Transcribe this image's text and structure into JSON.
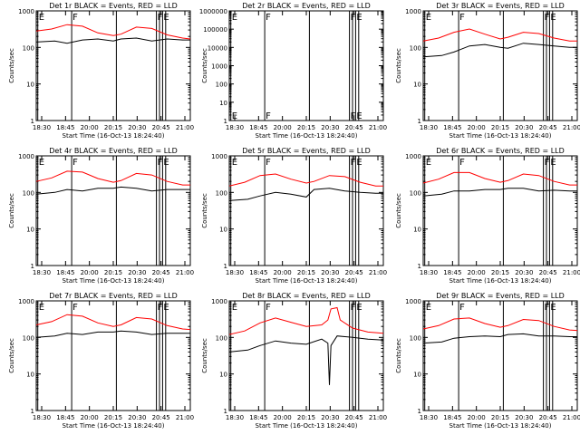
{
  "chart_data": [
    {
      "type": "line",
      "title": "Det 1r BLACK = Events, RED = LLD",
      "xlabel": "Start Time (16-Oct-13 18:24:40)",
      "ylabel": "Counts/sec",
      "yscale": "log",
      "ylim": [
        1,
        1000
      ],
      "x_ticks": [
        "18:30",
        "18:45",
        "20:00",
        "20:15",
        "20:30",
        "20:45",
        "21:00"
      ],
      "y_ticks": [
        "1",
        "10",
        "100",
        "1000"
      ],
      "markers": [
        {
          "label": "E",
          "x": 0.01
        },
        {
          "label": "F",
          "x": 0.23
        },
        {
          "label": "F",
          "x": 0.78
        },
        {
          "label": "E",
          "x": 0.82
        }
      ],
      "vlines": [
        0.01,
        0.23,
        0.52,
        0.78,
        0.8,
        0.82,
        0.84
      ],
      "series": [
        {
          "color": "#ff0000",
          "x": [
            0,
            0.1,
            0.2,
            0.3,
            0.4,
            0.5,
            0.55,
            0.65,
            0.75,
            0.85,
            0.95,
            1.0
          ],
          "values": [
            280,
            320,
            420,
            380,
            250,
            210,
            230,
            360,
            330,
            220,
            180,
            170
          ]
        },
        {
          "color": "#000000",
          "x": [
            0,
            0.12,
            0.2,
            0.3,
            0.4,
            0.5,
            0.55,
            0.65,
            0.75,
            0.85,
            0.95,
            1.0
          ],
          "values": [
            140,
            150,
            130,
            160,
            170,
            150,
            170,
            180,
            150,
            170,
            160,
            160
          ]
        }
      ]
    },
    {
      "type": "line",
      "title": "Det 2r BLACK = Events, RED = LLD",
      "xlabel": "Start Time (16-Oct-13 18:24:40)",
      "ylabel": "Counts/sec",
      "yscale": "log",
      "ylim": [
        1,
        1000000
      ],
      "x_ticks": [
        "18:30",
        "18:45",
        "20:00",
        "20:15",
        "20:30",
        "20:45",
        "21:00"
      ],
      "y_ticks": [
        "1",
        "10",
        "100",
        "1000",
        "10000",
        "100000",
        "1000000"
      ],
      "markers": [
        {
          "label": "E",
          "x": 0.01
        },
        {
          "label": "F",
          "x": 0.23
        },
        {
          "label": "F",
          "x": 0.78
        },
        {
          "label": "E",
          "x": 0.82
        }
      ],
      "vlines": [
        0.01,
        0.23,
        0.52,
        0.78,
        0.8,
        0.82,
        0.84
      ],
      "series": []
    },
    {
      "type": "line",
      "title": "Det 3r BLACK = Events, RED = LLD",
      "xlabel": "Start Time (16-Oct-13 18:24:40)",
      "ylabel": "Counts/sec",
      "yscale": "log",
      "ylim": [
        1,
        1000
      ],
      "x_ticks": [
        "18:30",
        "18:45",
        "20:00",
        "20:15",
        "20:30",
        "20:45",
        "21:00"
      ],
      "y_ticks": [
        "1",
        "10",
        "100",
        "1000"
      ],
      "markers": [
        {
          "label": "E",
          "x": 0.01
        },
        {
          "label": "F",
          "x": 0.23
        },
        {
          "label": "F",
          "x": 0.78
        },
        {
          "label": "E",
          "x": 0.82
        }
      ],
      "vlines": [
        0.01,
        0.23,
        0.52,
        0.78,
        0.8,
        0.82,
        0.84
      ],
      "series": [
        {
          "color": "#ff0000",
          "x": [
            0,
            0.1,
            0.2,
            0.3,
            0.4,
            0.5,
            0.55,
            0.65,
            0.75,
            0.85,
            0.95,
            1.0
          ],
          "values": [
            150,
            180,
            260,
            320,
            230,
            170,
            190,
            260,
            240,
            180,
            150,
            150
          ]
        },
        {
          "color": "#000000",
          "x": [
            0,
            0.12,
            0.2,
            0.3,
            0.4,
            0.5,
            0.55,
            0.65,
            0.75,
            0.85,
            0.95,
            1.0
          ],
          "values": [
            55,
            60,
            75,
            110,
            120,
            100,
            95,
            130,
            120,
            110,
            100,
            100
          ]
        }
      ]
    },
    {
      "type": "line",
      "title": "Det 4r BLACK = Events, RED = LLD",
      "xlabel": "Start Time (16-Oct-13 18:24:40)",
      "ylabel": "Counts/sec",
      "yscale": "log",
      "ylim": [
        1,
        1000
      ],
      "x_ticks": [
        "18:30",
        "18:45",
        "20:00",
        "20:15",
        "20:30",
        "20:45",
        "21:00"
      ],
      "y_ticks": [
        "1",
        "10",
        "100",
        "1000"
      ],
      "markers": [
        {
          "label": "E",
          "x": 0.01
        },
        {
          "label": "F",
          "x": 0.23
        },
        {
          "label": "F",
          "x": 0.78
        },
        {
          "label": "E",
          "x": 0.82
        }
      ],
      "vlines": [
        0.01,
        0.23,
        0.52,
        0.78,
        0.8,
        0.82,
        0.84
      ],
      "series": [
        {
          "color": "#ff0000",
          "x": [
            0,
            0.1,
            0.2,
            0.3,
            0.4,
            0.5,
            0.55,
            0.65,
            0.75,
            0.85,
            0.95,
            1.0
          ],
          "values": [
            200,
            250,
            380,
            360,
            240,
            190,
            210,
            330,
            300,
            200,
            160,
            160
          ]
        },
        {
          "color": "#000000",
          "x": [
            0,
            0.12,
            0.2,
            0.3,
            0.4,
            0.5,
            0.55,
            0.65,
            0.75,
            0.85,
            0.95,
            1.0
          ],
          "values": [
            90,
            100,
            120,
            110,
            130,
            130,
            140,
            130,
            110,
            120,
            120,
            120
          ]
        }
      ]
    },
    {
      "type": "line",
      "title": "Det 5r BLACK = Events, RED = LLD",
      "xlabel": "Start Time (16-Oct-13 18:24:40)",
      "ylabel": "Counts/sec",
      "yscale": "log",
      "ylim": [
        1,
        1000
      ],
      "x_ticks": [
        "18:30",
        "18:45",
        "20:00",
        "20:15",
        "20:30",
        "20:45",
        "21:00"
      ],
      "y_ticks": [
        "1",
        "10",
        "100",
        "1000"
      ],
      "markers": [
        {
          "label": "E",
          "x": 0.01
        },
        {
          "label": "F",
          "x": 0.23
        },
        {
          "label": "F",
          "x": 0.78
        },
        {
          "label": "E",
          "x": 0.82
        }
      ],
      "vlines": [
        0.01,
        0.23,
        0.52,
        0.78,
        0.8,
        0.82,
        0.84
      ],
      "series": [
        {
          "color": "#ff0000",
          "x": [
            0,
            0.1,
            0.2,
            0.3,
            0.4,
            0.5,
            0.55,
            0.65,
            0.75,
            0.85,
            0.95,
            1.0
          ],
          "values": [
            150,
            190,
            290,
            320,
            230,
            180,
            200,
            290,
            270,
            190,
            150,
            150
          ]
        },
        {
          "color": "#000000",
          "x": [
            0,
            0.12,
            0.2,
            0.3,
            0.4,
            0.5,
            0.55,
            0.65,
            0.75,
            0.85,
            0.95,
            1.0
          ],
          "values": [
            60,
            65,
            80,
            100,
            90,
            75,
            120,
            130,
            110,
            100,
            95,
            95
          ]
        }
      ]
    },
    {
      "type": "line",
      "title": "Det 6r BLACK = Events, RED = LLD",
      "xlabel": "Start Time (16-Oct-13 18:24:40)",
      "ylabel": "Counts/sec",
      "yscale": "log",
      "ylim": [
        1,
        1000
      ],
      "x_ticks": [
        "18:30",
        "18:45",
        "20:00",
        "20:15",
        "20:30",
        "20:45",
        "21:00"
      ],
      "y_ticks": [
        "1",
        "10",
        "100",
        "1000"
      ],
      "markers": [
        {
          "label": "E",
          "x": 0.01
        },
        {
          "label": "F",
          "x": 0.23
        },
        {
          "label": "F",
          "x": 0.78
        },
        {
          "label": "E",
          "x": 0.82
        }
      ],
      "vlines": [
        0.01,
        0.23,
        0.52,
        0.78,
        0.8,
        0.82,
        0.84
      ],
      "series": [
        {
          "color": "#ff0000",
          "x": [
            0,
            0.1,
            0.2,
            0.3,
            0.4,
            0.5,
            0.55,
            0.65,
            0.75,
            0.85,
            0.95,
            1.0
          ],
          "values": [
            180,
            230,
            350,
            350,
            240,
            190,
            210,
            320,
            290,
            200,
            160,
            160
          ]
        },
        {
          "color": "#000000",
          "x": [
            0,
            0.12,
            0.2,
            0.3,
            0.4,
            0.5,
            0.55,
            0.65,
            0.75,
            0.85,
            0.95,
            1.0
          ],
          "values": [
            80,
            90,
            110,
            110,
            120,
            120,
            130,
            130,
            110,
            115,
            110,
            110
          ]
        }
      ]
    },
    {
      "type": "line",
      "title": "Det 7r BLACK = Events, RED = LLD",
      "xlabel": "Start Time (16-Oct-13 18:24:40)",
      "ylabel": "Counts/sec",
      "yscale": "log",
      "ylim": [
        1,
        1000
      ],
      "x_ticks": [
        "18:30",
        "18:45",
        "20:00",
        "20:15",
        "20:30",
        "20:45",
        "21:00"
      ],
      "y_ticks": [
        "1",
        "10",
        "100",
        "1000"
      ],
      "markers": [
        {
          "label": "E",
          "x": 0.01
        },
        {
          "label": "F",
          "x": 0.23
        },
        {
          "label": "F",
          "x": 0.78
        },
        {
          "label": "E",
          "x": 0.82
        }
      ],
      "vlines": [
        0.01,
        0.23,
        0.52,
        0.78,
        0.8,
        0.82,
        0.84
      ],
      "series": [
        {
          "color": "#ff0000",
          "x": [
            0,
            0.1,
            0.2,
            0.3,
            0.4,
            0.5,
            0.55,
            0.65,
            0.75,
            0.85,
            0.95,
            1.0
          ],
          "values": [
            220,
            270,
            420,
            380,
            250,
            200,
            220,
            350,
            320,
            210,
            170,
            165
          ]
        },
        {
          "color": "#000000",
          "x": [
            0,
            0.12,
            0.2,
            0.3,
            0.4,
            0.5,
            0.55,
            0.65,
            0.75,
            0.85,
            0.95,
            1.0
          ],
          "values": [
            100,
            110,
            130,
            120,
            140,
            140,
            150,
            140,
            120,
            130,
            130,
            130
          ]
        }
      ]
    },
    {
      "type": "line",
      "title": "Det 8r BLACK = Events, RED = LLD",
      "xlabel": "Start Time (16-Oct-13 18:24:40)",
      "ylabel": "Counts/sec",
      "yscale": "log",
      "ylim": [
        1,
        1000
      ],
      "x_ticks": [
        "18:30",
        "18:45",
        "20:00",
        "20:15",
        "20:30",
        "20:45",
        "21:00"
      ],
      "y_ticks": [
        "1",
        "10",
        "100",
        "1000"
      ],
      "markers": [
        {
          "label": "E",
          "x": 0.01
        },
        {
          "label": "F",
          "x": 0.23
        },
        {
          "label": "F",
          "x": 0.78
        },
        {
          "label": "E",
          "x": 0.82
        }
      ],
      "vlines": [
        0.01,
        0.23,
        0.52,
        0.78,
        0.8,
        0.82,
        0.84
      ],
      "series": [
        {
          "color": "#ff0000",
          "x": [
            0,
            0.1,
            0.2,
            0.3,
            0.4,
            0.5,
            0.6,
            0.64,
            0.66,
            0.7,
            0.72,
            0.8,
            0.9,
            1.0
          ],
          "values": [
            120,
            150,
            250,
            340,
            260,
            200,
            220,
            300,
            600,
            650,
            300,
            180,
            140,
            130
          ]
        },
        {
          "color": "#000000",
          "x": [
            0,
            0.12,
            0.2,
            0.3,
            0.4,
            0.5,
            0.6,
            0.64,
            0.65,
            0.66,
            0.7,
            0.8,
            0.9,
            1.0
          ],
          "values": [
            40,
            45,
            60,
            80,
            70,
            65,
            90,
            70,
            5,
            60,
            110,
            100,
            90,
            85
          ]
        }
      ]
    },
    {
      "type": "line",
      "title": "Det 9r BLACK = Events, RED = LLD",
      "xlabel": "Start Time (16-Oct-13 18:24:40)",
      "ylabel": "Counts/sec",
      "yscale": "log",
      "ylim": [
        1,
        1000
      ],
      "x_ticks": [
        "18:30",
        "18:45",
        "20:00",
        "20:15",
        "20:30",
        "20:45",
        "21:00"
      ],
      "y_ticks": [
        "1",
        "10",
        "100",
        "1000"
      ],
      "markers": [
        {
          "label": "E",
          "x": 0.01
        },
        {
          "label": "F",
          "x": 0.23
        },
        {
          "label": "F",
          "x": 0.78
        },
        {
          "label": "E",
          "x": 0.82
        }
      ],
      "vlines": [
        0.01,
        0.23,
        0.52,
        0.78,
        0.8,
        0.82,
        0.84
      ],
      "series": [
        {
          "color": "#ff0000",
          "x": [
            0,
            0.1,
            0.2,
            0.3,
            0.4,
            0.5,
            0.55,
            0.65,
            0.75,
            0.85,
            0.95,
            1.0
          ],
          "values": [
            170,
            210,
            320,
            340,
            240,
            190,
            210,
            310,
            290,
            200,
            160,
            155
          ]
        },
        {
          "color": "#000000",
          "x": [
            0,
            0.12,
            0.2,
            0.3,
            0.4,
            0.5,
            0.55,
            0.65,
            0.75,
            0.85,
            0.95,
            1.0
          ],
          "values": [
            70,
            75,
            95,
            105,
            110,
            105,
            120,
            125,
            110,
            110,
            105,
            105
          ]
        }
      ]
    }
  ]
}
